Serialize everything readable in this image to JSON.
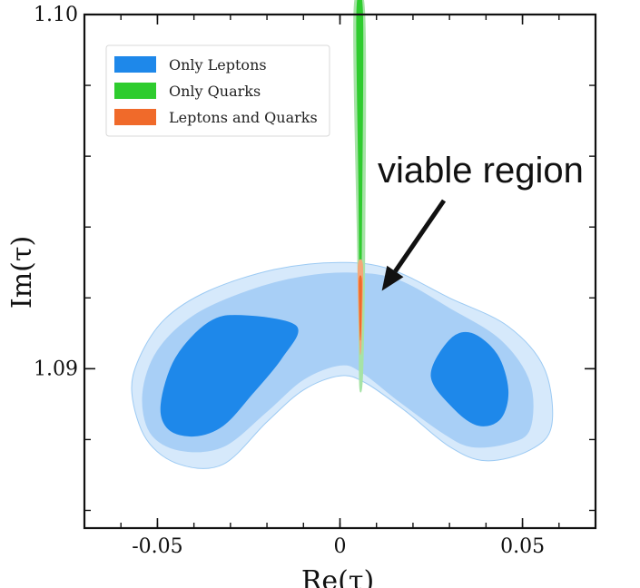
{
  "chart_data": {
    "type": "contour",
    "xlabel": "Re(τ)",
    "ylabel": "Im(τ)",
    "xlim": [
      -0.07,
      0.07
    ],
    "ylim": [
      1.0855,
      1.1
    ],
    "x_ticks": [
      {
        "value": -0.05,
        "label": "-0.05"
      },
      {
        "value": 0,
        "label": "0"
      },
      {
        "value": 0.05,
        "label": "0.05"
      }
    ],
    "y_ticks": [
      {
        "value": 1.09,
        "label": "1.09"
      },
      {
        "value": 1.1,
        "label": "1.10"
      }
    ],
    "legend": {
      "placement": "top-left",
      "entries": [
        {
          "label": "Only Leptons",
          "color": "#1e88ea"
        },
        {
          "label": "Only Quarks",
          "color": "#2ecc2e"
        },
        {
          "label": "Leptons and Quarks",
          "color": "#f06a2a"
        }
      ]
    },
    "annotation": {
      "text": "viable region",
      "arrow_target": {
        "x": 0.006,
        "y": 1.0922
      }
    },
    "series": [
      {
        "name": "Only Leptons",
        "color": "#1e88ea",
        "regions": [
          {
            "level": "outer",
            "fill": "#d6e9fb",
            "stroke": "#9ccaf3",
            "points": [
              [
                -0.057,
                1.0893
              ],
              [
                -0.055,
                1.0903
              ],
              [
                -0.048,
                1.0914
              ],
              [
                -0.036,
                1.0922
              ],
              [
                -0.018,
                1.0928
              ],
              [
                0,
                1.093
              ],
              [
                0.014,
                1.0928
              ],
              [
                0.03,
                1.092
              ],
              [
                0.046,
                1.0912
              ],
              [
                0.056,
                1.09
              ],
              [
                0.058,
                1.0884
              ],
              [
                0.052,
                1.0877
              ],
              [
                0.04,
                1.0874
              ],
              [
                0.03,
                1.0878
              ],
              [
                0.018,
                1.0888
              ],
              [
                0.007,
                1.0896
              ],
              [
                0,
                1.0898
              ],
              [
                -0.01,
                1.0894
              ],
              [
                -0.02,
                1.0885
              ],
              [
                -0.032,
                1.0873
              ],
              [
                -0.044,
                1.0873
              ],
              [
                -0.053,
                1.088
              ]
            ]
          },
          {
            "level": "middle",
            "fill": "#a8cff6",
            "stroke": "#a8cff6",
            "points": [
              [
                -0.054,
                1.0893
              ],
              [
                -0.05,
                1.0905
              ],
              [
                -0.04,
                1.0915
              ],
              [
                -0.025,
                1.0922
              ],
              [
                -0.01,
                1.0926
              ],
              [
                0.004,
                1.0927
              ],
              [
                0.016,
                1.0925
              ],
              [
                0.03,
                1.0917
              ],
              [
                0.044,
                1.0908
              ],
              [
                0.052,
                1.0896
              ],
              [
                0.052,
                1.0883
              ],
              [
                0.046,
                1.0879
              ],
              [
                0.036,
                1.0878
              ],
              [
                0.028,
                1.0882
              ],
              [
                0.016,
                1.0891
              ],
              [
                0.006,
                1.0899
              ],
              [
                0,
                1.0901
              ],
              [
                -0.01,
                1.0897
              ],
              [
                -0.02,
                1.0888
              ],
              [
                -0.032,
                1.0878
              ],
              [
                -0.044,
                1.0877
              ],
              [
                -0.052,
                1.0882
              ]
            ]
          },
          {
            "level": "inner-left",
            "fill": "#1e88ea",
            "stroke": "#1e88ea",
            "points": [
              [
                -0.049,
                1.089
              ],
              [
                -0.045,
                1.0903
              ],
              [
                -0.036,
                1.0913
              ],
              [
                -0.027,
                1.0915
              ],
              [
                -0.012,
                1.0912
              ],
              [
                -0.016,
                1.0903
              ],
              [
                -0.024,
                1.0893
              ],
              [
                -0.032,
                1.0884
              ],
              [
                -0.04,
                1.0881
              ],
              [
                -0.047,
                1.0883
              ]
            ]
          },
          {
            "level": "inner-right",
            "fill": "#1e88ea",
            "stroke": "#1e88ea",
            "points": [
              [
                0.025,
                1.0898
              ],
              [
                0.03,
                1.0908
              ],
              [
                0.036,
                1.091
              ],
              [
                0.043,
                1.0904
              ],
              [
                0.046,
                1.0894
              ],
              [
                0.044,
                1.0886
              ],
              [
                0.038,
                1.0884
              ],
              [
                0.031,
                1.0889
              ]
            ]
          }
        ]
      },
      {
        "name": "Only Quarks",
        "color": "#2ecc2e",
        "regions": [
          {
            "level": "outer",
            "fill": "#a6e3a6",
            "stroke": "#a6e3a6",
            "points": [
              [
                0.0038,
                1.1
              ],
              [
                0.0068,
                1.1
              ],
              [
                0.0068,
                1.0935
              ],
              [
                0.0064,
                1.0905
              ],
              [
                0.006,
                1.0895
              ],
              [
                0.0054,
                1.0895
              ],
              [
                0.0052,
                1.091
              ],
              [
                0.0048,
                1.0935
              ]
            ]
          },
          {
            "level": "inner",
            "fill": "#2ecc2e",
            "stroke": "#2ecc2e",
            "points": [
              [
                0.0046,
                1.1
              ],
              [
                0.0062,
                1.1
              ],
              [
                0.006,
                1.095
              ],
              [
                0.0058,
                1.0925
              ],
              [
                0.0056,
                1.0915
              ],
              [
                0.0054,
                1.0925
              ],
              [
                0.0052,
                1.095
              ]
            ]
          }
        ]
      },
      {
        "name": "Leptons and Quarks",
        "color": "#f06a2a",
        "regions": [
          {
            "level": "outer",
            "fill": "#f4a77a",
            "stroke": "#f4a77a",
            "points": [
              [
                0.005,
                1.0929
              ],
              [
                0.0062,
                1.0929
              ],
              [
                0.006,
                1.0915
              ],
              [
                0.0056,
                1.0904
              ],
              [
                0.0052,
                1.0915
              ]
            ]
          },
          {
            "level": "inner",
            "fill": "#f06a2a",
            "stroke": "#f06a2a",
            "points": [
              [
                0.0053,
                1.0925
              ],
              [
                0.0059,
                1.0925
              ],
              [
                0.0058,
                1.0915
              ],
              [
                0.0056,
                1.0908
              ],
              [
                0.0054,
                1.0915
              ]
            ]
          }
        ]
      }
    ]
  }
}
